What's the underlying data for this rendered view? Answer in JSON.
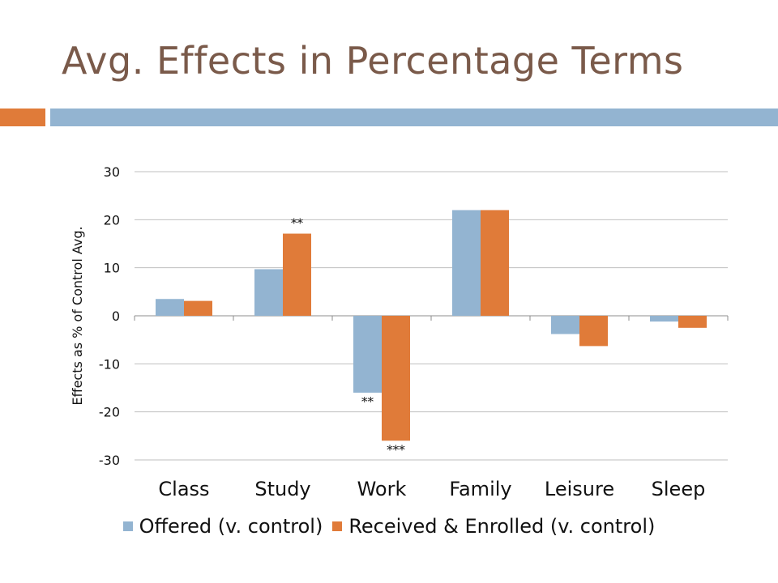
{
  "slide": {
    "title": "Avg. Effects in Percentage Terms"
  },
  "colors": {
    "title": "#7a5a4a",
    "accent_orange": "#e07b39",
    "accent_blue": "#93b4d1",
    "offered": "#93b4d1",
    "received": "#e07b39"
  },
  "chart_data": {
    "type": "bar",
    "title": "",
    "xlabel": "",
    "ylabel": "Effects as % of Control Avg.",
    "ylim": [
      -30,
      30
    ],
    "yticks": [
      30,
      20,
      10,
      0,
      -10,
      -20,
      -30
    ],
    "grid": true,
    "legend_position": "bottom",
    "categories": [
      "Class",
      "Study",
      "Work",
      "Family",
      "Leisure",
      "Sleep"
    ],
    "series": [
      {
        "name": "Offered (v. control)",
        "color": "#93b4d1",
        "values": [
          3.5,
          9.7,
          -16,
          22,
          -3.8,
          -1.2
        ],
        "annotations": [
          "",
          "",
          "**",
          "",
          "",
          ""
        ]
      },
      {
        "name": "Received & Enrolled (v. control)",
        "color": "#e07b39",
        "values": [
          3.1,
          17.1,
          -26,
          22,
          -6.3,
          -2.5
        ],
        "annotations": [
          "",
          "**",
          "***",
          "",
          "",
          ""
        ]
      }
    ]
  }
}
